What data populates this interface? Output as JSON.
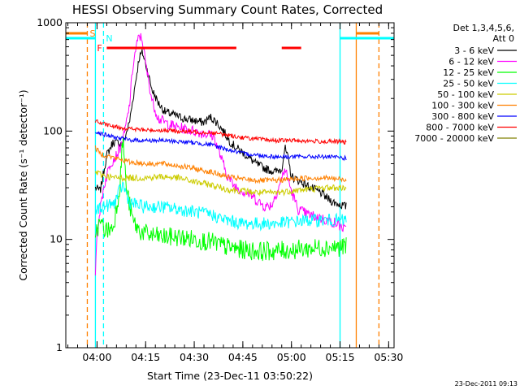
{
  "chart_data": {
    "type": "line",
    "title": "HESSI Observing Summary Count Rates, Corrected",
    "xlabel": "Start Time (23-Dec-11 03:50:22)",
    "ylabel": "Corrected Count Rate (s⁻¹ detector⁻¹)",
    "ylog": true,
    "ylim": [
      1,
      1000
    ],
    "yticks": [
      {
        "value": 1,
        "label": "1"
      },
      {
        "value": 10,
        "label": "10"
      },
      {
        "value": 100,
        "label": "100"
      },
      {
        "value": 1000,
        "label": "1000"
      }
    ],
    "xlim": [
      "03:50:22",
      "05:31:40"
    ],
    "xticks": [
      {
        "value": "04:00",
        "label": "04:00"
      },
      {
        "value": "04:15",
        "label": "04:15"
      },
      {
        "value": "04:30",
        "label": "04:30"
      },
      {
        "value": "04:45",
        "label": "04:45"
      },
      {
        "value": "05:00",
        "label": "05:00"
      },
      {
        "value": "05:15",
        "label": "05:15"
      },
      {
        "value": "05:30",
        "label": "05:30"
      }
    ],
    "legend_header": [
      "Det 1,3,4,5,6,",
      "Att 0"
    ],
    "legend_position": "right",
    "series": [
      {
        "name": "3 - 6 keV",
        "color": "#000000",
        "points": [
          [
            "03:59:30",
            30
          ],
          [
            "04:01",
            28
          ],
          [
            "04:03",
            60
          ],
          [
            "04:05",
            80
          ],
          [
            "04:08",
            75
          ],
          [
            "04:10",
            120
          ],
          [
            "04:12",
            300
          ],
          [
            "04:13",
            480
          ],
          [
            "04:14",
            530
          ],
          [
            "04:15",
            420
          ],
          [
            "04:17",
            240
          ],
          [
            "04:19",
            180
          ],
          [
            "04:21",
            150
          ],
          [
            "04:24",
            140
          ],
          [
            "04:27",
            130
          ],
          [
            "04:30",
            125
          ],
          [
            "04:33",
            120
          ],
          [
            "04:35",
            135
          ],
          [
            "04:37",
            120
          ],
          [
            "04:39",
            100
          ],
          [
            "04:41",
            80
          ],
          [
            "04:43",
            70
          ],
          [
            "04:46",
            60
          ],
          [
            "04:49",
            50
          ],
          [
            "04:52",
            45
          ],
          [
            "04:55",
            42
          ],
          [
            "04:57",
            45
          ],
          [
            "04:58",
            70
          ],
          [
            "04:59",
            55
          ],
          [
            "05:00",
            38
          ],
          [
            "05:03",
            34
          ],
          [
            "05:06",
            30
          ],
          [
            "05:09",
            27
          ],
          [
            "05:11",
            24
          ],
          [
            "05:13",
            22
          ],
          [
            "05:15",
            21
          ],
          [
            "05:17",
            20
          ]
        ]
      },
      {
        "name": "6 - 12 keV",
        "color": "#ff00ff",
        "points": [
          [
            "03:59:30",
            5
          ],
          [
            "04:00",
            12
          ],
          [
            "04:02",
            30
          ],
          [
            "04:04",
            50
          ],
          [
            "04:06",
            60
          ],
          [
            "04:08",
            80
          ],
          [
            "04:10",
            170
          ],
          [
            "04:11",
            380
          ],
          [
            "04:12",
            580
          ],
          [
            "04:13",
            760
          ],
          [
            "04:14",
            700
          ],
          [
            "04:15",
            420
          ],
          [
            "04:17",
            190
          ],
          [
            "04:19",
            130
          ],
          [
            "04:21",
            120
          ],
          [
            "04:24",
            110
          ],
          [
            "04:27",
            105
          ],
          [
            "04:30",
            100
          ],
          [
            "04:33",
            95
          ],
          [
            "04:36",
            90
          ],
          [
            "04:38",
            60
          ],
          [
            "04:40",
            40
          ],
          [
            "04:42",
            32
          ],
          [
            "04:45",
            28
          ],
          [
            "04:48",
            25
          ],
          [
            "04:50",
            22
          ],
          [
            "04:52",
            20
          ],
          [
            "04:54",
            21
          ],
          [
            "04:56",
            30
          ],
          [
            "04:58",
            45
          ],
          [
            "05:00",
            28
          ],
          [
            "05:02",
            19
          ],
          [
            "05:05",
            17
          ],
          [
            "05:08",
            16
          ],
          [
            "05:11",
            15
          ],
          [
            "05:14",
            14
          ],
          [
            "05:17",
            12
          ]
        ]
      },
      {
        "name": "12 - 25 keV",
        "color": "#00ff00",
        "points": [
          [
            "03:59:30",
            12
          ],
          [
            "04:01",
            14
          ],
          [
            "04:03",
            12
          ],
          [
            "04:05",
            13
          ],
          [
            "04:07",
            30
          ],
          [
            "04:08",
            90
          ],
          [
            "04:09",
            30
          ],
          [
            "04:11",
            15
          ],
          [
            "04:13",
            12
          ],
          [
            "04:16",
            11
          ],
          [
            "04:20",
            10.5
          ],
          [
            "04:25",
            10.5
          ],
          [
            "04:30",
            10
          ],
          [
            "04:35",
            9.5
          ],
          [
            "04:40",
            8.5
          ],
          [
            "04:45",
            8
          ],
          [
            "04:50",
            7.8
          ],
          [
            "04:55",
            7.8
          ],
          [
            "05:00",
            8
          ],
          [
            "05:05",
            8.2
          ],
          [
            "05:10",
            8.5
          ],
          [
            "05:15",
            8.5
          ],
          [
            "05:17",
            8.5
          ]
        ]
      },
      {
        "name": "25 - 50 keV",
        "color": "#00ffff",
        "points": [
          [
            "03:59:30",
            18
          ],
          [
            "04:01",
            20
          ],
          [
            "04:05",
            21
          ],
          [
            "04:07",
            28
          ],
          [
            "04:08",
            32
          ],
          [
            "04:10",
            22
          ],
          [
            "04:14",
            20
          ],
          [
            "04:20",
            20
          ],
          [
            "04:25",
            19
          ],
          [
            "04:30",
            18
          ],
          [
            "04:35",
            17
          ],
          [
            "04:40",
            15
          ],
          [
            "04:45",
            14
          ],
          [
            "04:50",
            14
          ],
          [
            "04:55",
            14
          ],
          [
            "05:00",
            14.5
          ],
          [
            "05:05",
            15
          ],
          [
            "05:10",
            15
          ],
          [
            "05:15",
            15
          ],
          [
            "05:17",
            15
          ]
        ]
      },
      {
        "name": "50 - 100 keV",
        "color": "#cccc00",
        "points": [
          [
            "03:59:30",
            42
          ],
          [
            "04:01",
            40
          ],
          [
            "04:05",
            37
          ],
          [
            "04:10",
            37
          ],
          [
            "04:15",
            37
          ],
          [
            "04:20",
            38
          ],
          [
            "04:25",
            37
          ],
          [
            "04:30",
            34
          ],
          [
            "04:35",
            32
          ],
          [
            "04:40",
            29
          ],
          [
            "04:45",
            28
          ],
          [
            "04:50",
            27
          ],
          [
            "04:55",
            27
          ],
          [
            "05:00",
            28
          ],
          [
            "05:05",
            29
          ],
          [
            "05:10",
            30
          ],
          [
            "05:15",
            30
          ],
          [
            "05:17",
            30
          ]
        ]
      },
      {
        "name": "100 - 300 keV",
        "color": "#ff8000",
        "points": [
          [
            "03:59:30",
            70
          ],
          [
            "04:01",
            62
          ],
          [
            "04:05",
            57
          ],
          [
            "04:10",
            52
          ],
          [
            "04:15",
            50
          ],
          [
            "04:20",
            50
          ],
          [
            "04:25",
            48
          ],
          [
            "04:30",
            45
          ],
          [
            "04:35",
            42
          ],
          [
            "04:40",
            38
          ],
          [
            "04:45",
            36
          ],
          [
            "04:50",
            35
          ],
          [
            "04:55",
            35
          ],
          [
            "05:00",
            36
          ],
          [
            "05:05",
            37
          ],
          [
            "05:10",
            37
          ],
          [
            "05:15",
            36
          ],
          [
            "05:17",
            35
          ]
        ]
      },
      {
        "name": "300 - 800 keV",
        "color": "#0000ff",
        "points": [
          [
            "03:59:30",
            100
          ],
          [
            "04:01",
            95
          ],
          [
            "04:05",
            88
          ],
          [
            "04:10",
            83
          ],
          [
            "04:15",
            82
          ],
          [
            "04:20",
            82
          ],
          [
            "04:25",
            80
          ],
          [
            "04:30",
            78
          ],
          [
            "04:35",
            75
          ],
          [
            "04:40",
            68
          ],
          [
            "04:45",
            62
          ],
          [
            "04:50",
            60
          ],
          [
            "04:55",
            58
          ],
          [
            "05:00",
            58
          ],
          [
            "05:05",
            58
          ],
          [
            "05:10",
            58
          ],
          [
            "05:15",
            57
          ],
          [
            "05:17",
            56
          ]
        ]
      },
      {
        "name": "800 - 7000 keV",
        "color": "#ff0000",
        "points": [
          [
            "03:59:30",
            125
          ],
          [
            "04:01",
            118
          ],
          [
            "04:05",
            110
          ],
          [
            "04:10",
            105
          ],
          [
            "04:15",
            102
          ],
          [
            "04:20",
            102
          ],
          [
            "04:25",
            100
          ],
          [
            "04:30",
            98
          ],
          [
            "04:35",
            97
          ],
          [
            "04:40",
            92
          ],
          [
            "04:45",
            87
          ],
          [
            "04:50",
            84
          ],
          [
            "04:55",
            82
          ],
          [
            "05:00",
            82
          ],
          [
            "05:05",
            81
          ],
          [
            "05:10",
            80
          ],
          [
            "05:15",
            80
          ],
          [
            "05:17",
            78
          ]
        ]
      },
      {
        "name": "7000 - 20000 keV",
        "color": "#808000",
        "points": []
      }
    ],
    "indicators": [
      {
        "label": "S",
        "color": "#ff8000"
      },
      {
        "label": "N",
        "color": "#00ffff"
      },
      {
        "label": "F",
        "color": "#ff0000"
      }
    ],
    "footer": "23-Dec-2011 09:13"
  }
}
